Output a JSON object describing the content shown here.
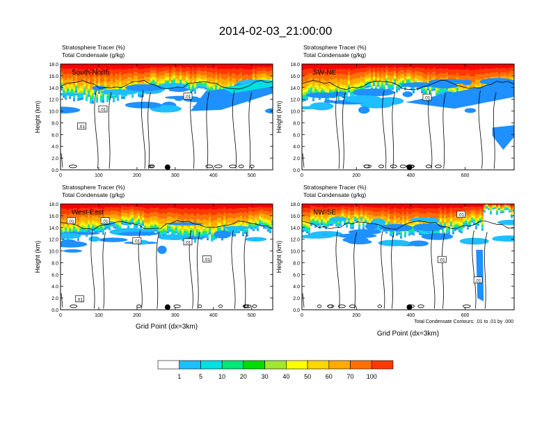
{
  "title": "2014-02-03_21:00:00",
  "footnote": "Total Condensate Contours: .01 to .01 by .000",
  "colors": {
    "levels": [
      "#ffffff",
      "#1e90ff",
      "#1ebeff",
      "#00e0e0",
      "#00e87a",
      "#00dc00",
      "#a0e632",
      "#ffff00",
      "#ffd700",
      "#ffaa00",
      "#ff7000",
      "#ff3a00",
      "#ff0000"
    ],
    "contour": "#000000",
    "background": "#ffffff"
  },
  "colorbar": {
    "labels": [
      "1",
      "5",
      "10",
      "20",
      "30",
      "40",
      "50",
      "60",
      "70",
      "100"
    ]
  },
  "chart_data": [
    {
      "type": "heatmap",
      "panel": "South-North",
      "title_line1": "Stratosphere Tracer   (%)",
      "title_line2": "Total Condensate   (g/kg)",
      "xlabel": "",
      "ylabel": "Height (km)",
      "xlim": [
        0,
        555
      ],
      "ylim": [
        0,
        18
      ],
      "xticks": [
        "0",
        "100",
        "200",
        "300",
        "400",
        "500"
      ],
      "yticks": [
        "0.0",
        "2.0",
        "4.0",
        "6.0",
        "8.0",
        "10.0",
        "12.0",
        "14.0",
        "16.0",
        "18.0"
      ],
      "contour_labels": [
        ".01",
        ".01",
        ".01"
      ],
      "marker_x": 280,
      "tracer_top_km": 16.0,
      "blue_anvil_km": [
        10.0,
        15.0
      ]
    },
    {
      "type": "heatmap",
      "panel": "SW-NE",
      "title_line1": "Stratosphere Tracer   (%)",
      "title_line2": "Total Condensate   (g/kg)",
      "xlabel": "",
      "ylabel": "Height (km)",
      "xlim": [
        0,
        780
      ],
      "ylim": [
        0,
        18
      ],
      "xticks": [
        "0",
        "200",
        "400",
        "600"
      ],
      "yticks": [
        "0.0",
        "2.0",
        "4.0",
        "6.0",
        "8.0",
        "10.0",
        "12.0",
        "14.0",
        "16.0",
        "18.0"
      ],
      "contour_labels": [
        ".01"
      ],
      "marker_x": 395,
      "tracer_top_km": 16.0,
      "blue_anvil_km": [
        10.0,
        15.0
      ]
    },
    {
      "type": "heatmap",
      "panel": "West-East",
      "title_line1": "Stratosphere Tracer   (%)",
      "title_line2": "Total Condensate   (g/kg)",
      "xlabel": "Grid Point (dx=3km)",
      "ylabel": "Height (km)",
      "xlim": [
        0,
        555
      ],
      "ylim": [
        0,
        18
      ],
      "xticks": [
        "0",
        "100",
        "200",
        "300",
        "400",
        "500"
      ],
      "yticks": [
        "0.0",
        "2.0",
        "4.0",
        "6.0",
        "8.0",
        "10.0",
        "12.0",
        "14.0",
        "16.0",
        "18.0"
      ],
      "contour_labels": [
        ".01",
        ".01",
        ".01",
        ".01",
        ".01",
        ".01"
      ],
      "marker_x": 280,
      "tracer_top_km": 16.0,
      "blue_anvil_km": [
        10.0,
        15.0
      ]
    },
    {
      "type": "heatmap",
      "panel": "NW-SE",
      "title_line1": "Stratosphere Tracer   (%)",
      "title_line2": "Total Condensate   (g/kg)",
      "xlabel": "Grid Point (dx=3km)",
      "ylabel": "Height (km)",
      "xlim": [
        0,
        780
      ],
      "ylim": [
        0,
        18
      ],
      "xticks": [
        "0",
        "200",
        "400",
        "600"
      ],
      "yticks": [
        "0.0",
        "2.0",
        "4.0",
        "6.0",
        "8.0",
        "10.0",
        "12.0",
        "14.0",
        "16.0",
        "18.0"
      ],
      "contour_labels": [
        ".01",
        ".01",
        ".01"
      ],
      "marker_x": 395,
      "tracer_top_km": 16.5,
      "blue_anvil_km": [
        11.0,
        15.5
      ]
    }
  ]
}
